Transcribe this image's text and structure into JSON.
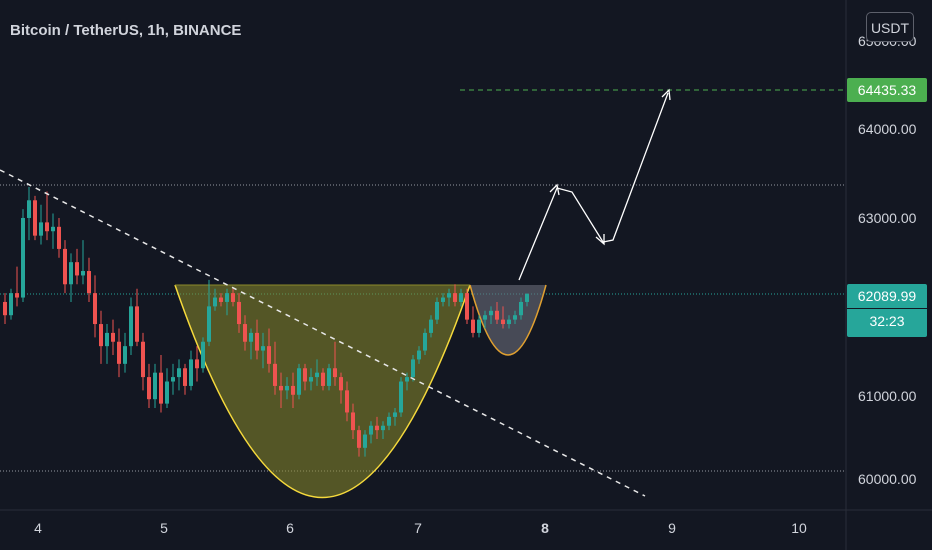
{
  "header": {
    "symbol": "Bitcoin / TetherUS, 1h, BINANCE",
    "currency": "USDT"
  },
  "price_scale": {
    "top_label": "65000.00",
    "current_price": "62089.99",
    "countdown": "32:23",
    "target_price": "64435.33"
  },
  "colors": {
    "background": "#131722",
    "up": "#26a69a",
    "down": "#ef5350",
    "target_line": "#4caf50",
    "cup_fill": "#8b8a2a",
    "cup_stroke": "#f5d93c",
    "handle_fill": "#6a6d7a",
    "handle_stroke": "#e0a030"
  },
  "chart_data": {
    "type": "candlestick",
    "title": "Bitcoin / TetherUS, 1h, BINANCE",
    "x_ticks": [
      "4",
      "5",
      "6",
      "7",
      "8",
      "9",
      "10"
    ],
    "y_ticks": [
      "64000.00",
      "63000.00",
      "61000.00",
      "60000.00"
    ],
    "ylim": [
      59850,
      65300
    ],
    "resistance_level": 63320,
    "support_level": 60080,
    "current_price": 62089.99,
    "target_price": 64435.33,
    "pattern": "cup and handle",
    "candles_ohlc": [
      [
        62000,
        62100,
        61750,
        61850
      ],
      [
        61850,
        62150,
        61800,
        62100
      ],
      [
        62100,
        62400,
        61950,
        62050
      ],
      [
        62050,
        63050,
        62000,
        62950
      ],
      [
        62950,
        63300,
        62700,
        63150
      ],
      [
        63150,
        63200,
        62700,
        62750
      ],
      [
        62750,
        63100,
        62650,
        62900
      ],
      [
        62900,
        63250,
        62700,
        62800
      ],
      [
        62800,
        63000,
        62600,
        62850
      ],
      [
        62850,
        62950,
        62500,
        62600
      ],
      [
        62600,
        62700,
        62100,
        62200
      ],
      [
        62200,
        62550,
        62000,
        62450
      ],
      [
        62450,
        62600,
        62200,
        62300
      ],
      [
        62300,
        62700,
        62200,
        62350
      ],
      [
        62350,
        62500,
        62000,
        62100
      ],
      [
        62100,
        62300,
        61600,
        61750
      ],
      [
        61750,
        61900,
        61300,
        61500
      ],
      [
        61500,
        61750,
        61300,
        61650
      ],
      [
        61650,
        61800,
        61400,
        61550
      ],
      [
        61550,
        61700,
        61150,
        61300
      ],
      [
        61300,
        61650,
        61200,
        61500
      ],
      [
        61500,
        62050,
        61400,
        61950
      ],
      [
        61950,
        62150,
        61500,
        61550
      ],
      [
        61550,
        61650,
        61000,
        61150
      ],
      [
        61150,
        61300,
        60800,
        60900
      ],
      [
        60900,
        61300,
        60800,
        61200
      ],
      [
        61200,
        61400,
        60750,
        60850
      ],
      [
        60850,
        61250,
        60800,
        61100
      ],
      [
        61100,
        61300,
        60950,
        61150
      ],
      [
        61150,
        61350,
        61000,
        61250
      ],
      [
        61250,
        61300,
        60950,
        61050
      ],
      [
        61050,
        61450,
        61000,
        61350
      ],
      [
        61350,
        61500,
        61100,
        61250
      ],
      [
        61250,
        61600,
        61200,
        61550
      ],
      [
        61550,
        62250,
        61500,
        61950
      ],
      [
        61950,
        62150,
        61900,
        62050
      ],
      [
        62050,
        62100,
        61950,
        62000
      ],
      [
        62000,
        62150,
        61850,
        62100
      ],
      [
        62100,
        62150,
        61950,
        62000
      ],
      [
        62000,
        62100,
        61650,
        61750
      ],
      [
        61750,
        61850,
        61450,
        61550
      ],
      [
        61550,
        61700,
        61350,
        61650
      ],
      [
        61650,
        61800,
        61350,
        61450
      ],
      [
        61450,
        61650,
        61250,
        61500
      ],
      [
        61500,
        61700,
        61200,
        61300
      ],
      [
        61300,
        61550,
        60950,
        61050
      ],
      [
        61050,
        61200,
        60800,
        61000
      ],
      [
        61000,
        61150,
        60900,
        61050
      ],
      [
        61050,
        61200,
        60800,
        60950
      ],
      [
        60950,
        61300,
        60900,
        61250
      ],
      [
        61250,
        61300,
        61000,
        61100
      ],
      [
        61100,
        61250,
        61000,
        61150
      ],
      [
        61150,
        61350,
        61050,
        61200
      ],
      [
        61200,
        61250,
        61000,
        61050
      ],
      [
        61050,
        61300,
        61000,
        61250
      ],
      [
        61250,
        61550,
        61050,
        61150
      ],
      [
        61150,
        61200,
        60850,
        61000
      ],
      [
        61000,
        61100,
        60650,
        60750
      ],
      [
        60750,
        60850,
        60450,
        60550
      ],
      [
        60550,
        60600,
        60250,
        60350
      ],
      [
        60350,
        60550,
        60250,
        60500
      ],
      [
        60500,
        60650,
        60400,
        60600
      ],
      [
        60600,
        60700,
        60450,
        60550
      ],
      [
        60550,
        60650,
        60450,
        60600
      ],
      [
        60600,
        60750,
        60550,
        60700
      ],
      [
        60700,
        60800,
        60600,
        60750
      ],
      [
        60750,
        61150,
        60700,
        61100
      ],
      [
        61100,
        61200,
        61000,
        61150
      ],
      [
        61150,
        61400,
        61100,
        61350
      ],
      [
        61350,
        61500,
        61300,
        61450
      ],
      [
        61450,
        61700,
        61400,
        61650
      ],
      [
        61650,
        61850,
        61600,
        61800
      ],
      [
        61800,
        62050,
        61750,
        62000
      ],
      [
        62000,
        62100,
        61950,
        62050
      ],
      [
        62050,
        62150,
        61950,
        62100
      ],
      [
        62100,
        62200,
        61950,
        62000
      ],
      [
        62000,
        62150,
        61950,
        62100
      ],
      [
        62100,
        62150,
        61750,
        61800
      ],
      [
        61800,
        61950,
        61600,
        61650
      ],
      [
        61650,
        61850,
        61600,
        61800
      ],
      [
        61800,
        61900,
        61700,
        61850
      ],
      [
        61850,
        61950,
        61750,
        61900
      ],
      [
        61900,
        62000,
        61750,
        61800
      ],
      [
        61800,
        61950,
        61700,
        61750
      ],
      [
        61750,
        61850,
        61700,
        61800
      ],
      [
        61800,
        61900,
        61750,
        61850
      ],
      [
        61850,
        62050,
        61800,
        62000
      ],
      [
        62000,
        62100,
        61950,
        62090
      ]
    ]
  }
}
